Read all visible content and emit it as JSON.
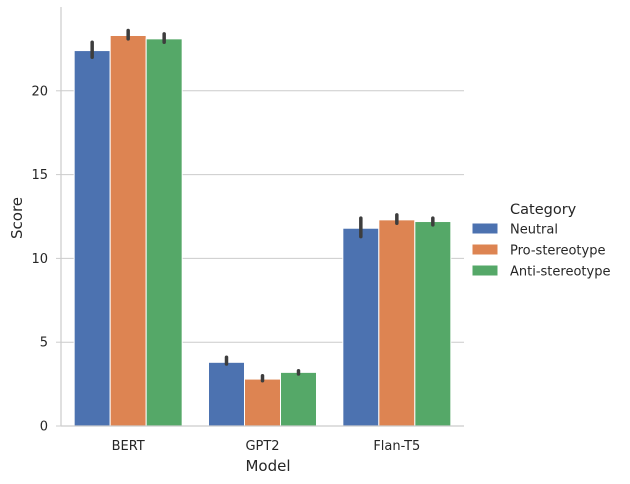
{
  "chart_data": {
    "type": "bar",
    "title": "",
    "xlabel": "Model",
    "ylabel": "Score",
    "categories": [
      "BERT",
      "GPT2",
      "Flan-T5"
    ],
    "ylim": [
      0,
      25
    ],
    "yticks": [
      0,
      5,
      10,
      15,
      20
    ],
    "grid": "horizontal",
    "legend": {
      "title": "Category",
      "placement": "right"
    },
    "series": [
      {
        "name": "Neutral",
        "color": "#4c72b0",
        "values": [
          22.4,
          3.8,
          11.8
        ],
        "error_low": [
          22.0,
          3.7,
          11.3
        ],
        "error_high": [
          22.9,
          4.1,
          12.4
        ]
      },
      {
        "name": "Pro-stereotype",
        "color": "#dd8452",
        "values": [
          23.3,
          2.8,
          12.3
        ],
        "error_low": [
          23.1,
          2.7,
          12.1
        ],
        "error_high": [
          23.6,
          3.0,
          12.6
        ]
      },
      {
        "name": "Anti-stereotype",
        "color": "#55a868",
        "values": [
          23.1,
          3.2,
          12.2
        ],
        "error_low": [
          22.9,
          3.1,
          12.0
        ],
        "error_high": [
          23.4,
          3.3,
          12.4
        ]
      }
    ]
  }
}
